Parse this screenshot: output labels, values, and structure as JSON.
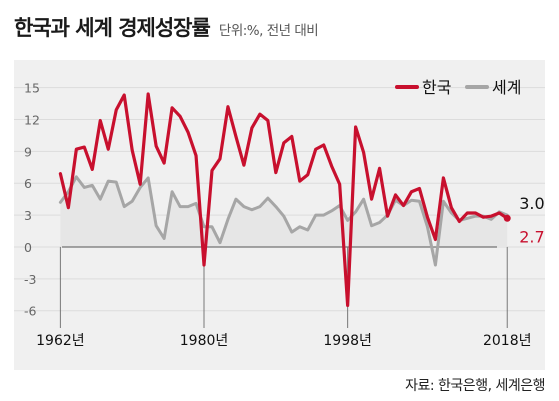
{
  "header": {
    "title": "한국과 세계 경제성장률",
    "subtitle": "단위:%, 전년 대비"
  },
  "source": "자료: 한국은행, 세계은행",
  "colors": {
    "korea": "#c8102e",
    "world": "#a6a6a6",
    "panel": "#f0f0f0",
    "area": "#e6e6e6"
  },
  "chart_data": {
    "type": "line",
    "x": [
      1962,
      1963,
      1964,
      1965,
      1966,
      1967,
      1968,
      1969,
      1970,
      1971,
      1972,
      1973,
      1974,
      1975,
      1976,
      1977,
      1978,
      1979,
      1980,
      1981,
      1982,
      1983,
      1984,
      1985,
      1986,
      1987,
      1988,
      1989,
      1990,
      1991,
      1992,
      1993,
      1994,
      1995,
      1996,
      1997,
      1998,
      1999,
      2000,
      2001,
      2002,
      2003,
      2004,
      2005,
      2006,
      2007,
      2008,
      2009,
      2010,
      2011,
      2012,
      2013,
      2014,
      2015,
      2016,
      2017,
      2018
    ],
    "x_ticks": [
      1962,
      1980,
      1998,
      2018
    ],
    "x_tick_labels": [
      "1962년",
      "1980년",
      "1998년",
      "2018년"
    ],
    "y_ticks": [
      15,
      12,
      9,
      6,
      3,
      0,
      -3,
      -6
    ],
    "y_tick_labels": [
      "15",
      "12",
      "9",
      "6",
      "3",
      "0",
      "-3",
      "-6"
    ],
    "ylim": [
      -6.5,
      16
    ],
    "xlim": [
      1961.2,
      2019.6
    ],
    "legend_position": "top-right",
    "series": [
      {
        "name": "한국",
        "color": "#c8102e",
        "values": [
          6.9,
          3.7,
          9.2,
          9.4,
          7.3,
          11.9,
          9.2,
          12.9,
          14.3,
          9.1,
          5.9,
          14.4,
          9.5,
          7.9,
          13.1,
          12.3,
          10.8,
          8.6,
          -1.7,
          7.2,
          8.3,
          13.2,
          10.4,
          7.7,
          11.2,
          12.5,
          11.9,
          7.0,
          9.8,
          10.4,
          6.2,
          6.8,
          9.2,
          9.6,
          7.6,
          5.9,
          -5.5,
          11.3,
          8.9,
          4.5,
          7.4,
          2.9,
          4.9,
          3.9,
          5.2,
          5.5,
          2.8,
          0.7,
          6.5,
          3.7,
          2.4,
          3.2,
          3.2,
          2.8,
          2.9,
          3.2,
          2.7
        ],
        "end_label": "2.7"
      },
      {
        "name": "세계",
        "color": "#a6a6a6",
        "values": [
          4.2,
          5.2,
          6.6,
          5.6,
          5.8,
          4.5,
          6.2,
          6.1,
          3.8,
          4.3,
          5.6,
          6.5,
          2.0,
          0.8,
          5.2,
          3.8,
          3.8,
          4.1,
          1.9,
          1.9,
          0.4,
          2.6,
          4.5,
          3.8,
          3.5,
          3.8,
          4.6,
          3.8,
          2.9,
          1.4,
          1.9,
          1.6,
          3.0,
          3.0,
          3.4,
          3.9,
          2.5,
          3.3,
          4.5,
          2.0,
          2.3,
          3.0,
          4.4,
          3.9,
          4.4,
          4.3,
          1.9,
          -1.7,
          4.3,
          3.2,
          2.5,
          2.7,
          2.9,
          2.9,
          2.6,
          3.3,
          3.0
        ],
        "end_label": "3.0"
      }
    ]
  }
}
